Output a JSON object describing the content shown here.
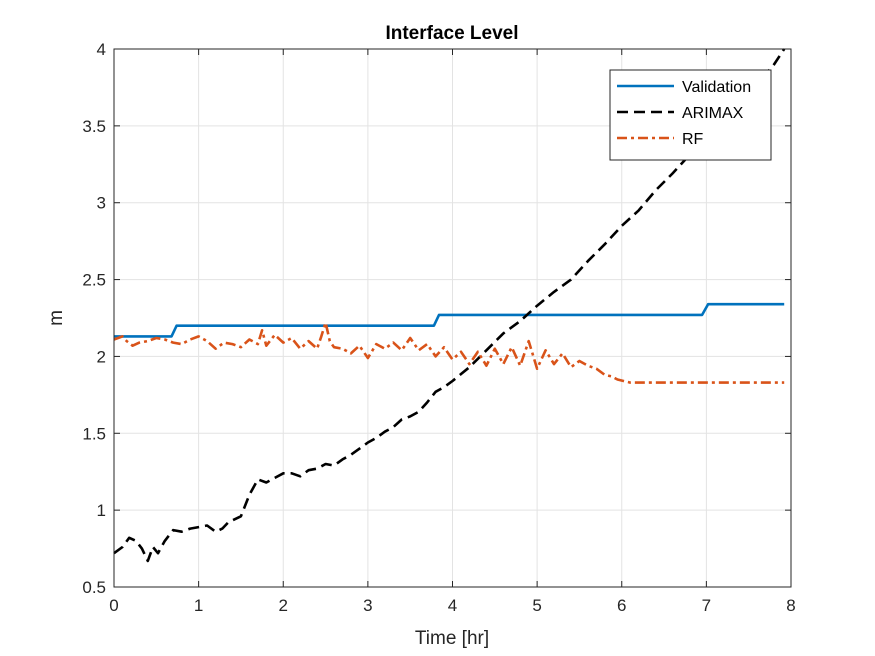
{
  "chart_data": {
    "type": "line",
    "title": "Interface Level",
    "xlabel": "Time [hr]",
    "ylabel": "m",
    "xlim": [
      0,
      8
    ],
    "ylim": [
      0.5,
      4
    ],
    "xticks": [
      "0",
      "1",
      "2",
      "3",
      "4",
      "5",
      "6",
      "7",
      "8"
    ],
    "yticks": [
      "0.5",
      "1",
      "1.5",
      "2",
      "2.5",
      "3",
      "3.5",
      "4"
    ],
    "grid": true,
    "legend_position": "top-right",
    "series": [
      {
        "name": "Validation",
        "color": "#0072BD",
        "style": "solid",
        "x": [
          0,
          0.68,
          0.74,
          3.78,
          3.84,
          6.95,
          7.02,
          7.92
        ],
        "y": [
          2.13,
          2.13,
          2.2,
          2.2,
          2.27,
          2.27,
          2.34,
          2.34
        ]
      },
      {
        "name": "ARIMAX",
        "color": "#000000",
        "style": "dashed",
        "x": [
          0,
          0.1,
          0.18,
          0.26,
          0.33,
          0.4,
          0.46,
          0.52,
          0.6,
          0.7,
          0.8,
          0.9,
          1.0,
          1.1,
          1.2,
          1.28,
          1.35,
          1.5,
          1.6,
          1.7,
          1.8,
          1.9,
          2.0,
          2.1,
          2.2,
          2.3,
          2.4,
          2.5,
          2.6,
          2.7,
          2.8,
          2.9,
          3.0,
          3.1,
          3.2,
          3.3,
          3.4,
          3.5,
          3.6,
          3.7,
          3.8,
          3.9,
          4.0,
          4.2,
          4.4,
          4.6,
          4.8,
          5.0,
          5.2,
          5.4,
          5.6,
          5.8,
          6.0,
          6.2,
          6.4,
          6.6,
          6.8,
          7.0,
          7.2,
          7.4,
          7.6,
          7.8,
          7.92
        ],
        "y": [
          0.72,
          0.76,
          0.82,
          0.8,
          0.75,
          0.67,
          0.76,
          0.72,
          0.8,
          0.87,
          0.86,
          0.88,
          0.89,
          0.9,
          0.86,
          0.88,
          0.92,
          0.96,
          1.1,
          1.2,
          1.18,
          1.21,
          1.24,
          1.24,
          1.22,
          1.26,
          1.27,
          1.3,
          1.29,
          1.33,
          1.36,
          1.4,
          1.44,
          1.47,
          1.51,
          1.54,
          1.59,
          1.61,
          1.64,
          1.7,
          1.77,
          1.8,
          1.84,
          1.93,
          2.04,
          2.15,
          2.23,
          2.33,
          2.42,
          2.5,
          2.62,
          2.73,
          2.85,
          2.95,
          3.08,
          3.19,
          3.31,
          3.42,
          3.54,
          3.65,
          3.77,
          3.9,
          4.0
        ]
      },
      {
        "name": "RF",
        "color": "#D95319",
        "style": "dashdot",
        "x": [
          0,
          0.1,
          0.15,
          0.22,
          0.3,
          0.4,
          0.5,
          0.6,
          0.7,
          0.8,
          0.9,
          1.0,
          1.1,
          1.2,
          1.3,
          1.4,
          1.5,
          1.6,
          1.7,
          1.75,
          1.8,
          1.9,
          2.0,
          2.1,
          2.2,
          2.3,
          2.4,
          2.45,
          2.5,
          2.55,
          2.6,
          2.7,
          2.8,
          2.9,
          3.0,
          3.1,
          3.2,
          3.3,
          3.4,
          3.5,
          3.6,
          3.7,
          3.8,
          3.9,
          4.0,
          4.1,
          4.2,
          4.3,
          4.4,
          4.5,
          4.6,
          4.7,
          4.8,
          4.9,
          5.0,
          5.1,
          5.2,
          5.3,
          5.4,
          5.5,
          5.6,
          5.7,
          5.8,
          5.88,
          5.95,
          6.1,
          7.0,
          7.92
        ],
        "y": [
          2.11,
          2.13,
          2.1,
          2.07,
          2.09,
          2.1,
          2.12,
          2.11,
          2.09,
          2.08,
          2.11,
          2.13,
          2.1,
          2.05,
          2.09,
          2.08,
          2.06,
          2.11,
          2.08,
          2.17,
          2.07,
          2.14,
          2.09,
          2.12,
          2.05,
          2.1,
          2.05,
          2.13,
          2.22,
          2.1,
          2.06,
          2.05,
          2.02,
          2.07,
          1.99,
          2.08,
          2.05,
          2.09,
          2.04,
          2.12,
          2.04,
          2.08,
          2.0,
          2.06,
          1.98,
          2.03,
          1.95,
          2.03,
          1.94,
          2.05,
          1.95,
          2.06,
          1.94,
          2.1,
          1.92,
          2.04,
          1.95,
          2.02,
          1.93,
          1.97,
          1.94,
          1.92,
          1.88,
          1.87,
          1.85,
          1.83,
          1.83,
          1.83
        ]
      }
    ]
  }
}
